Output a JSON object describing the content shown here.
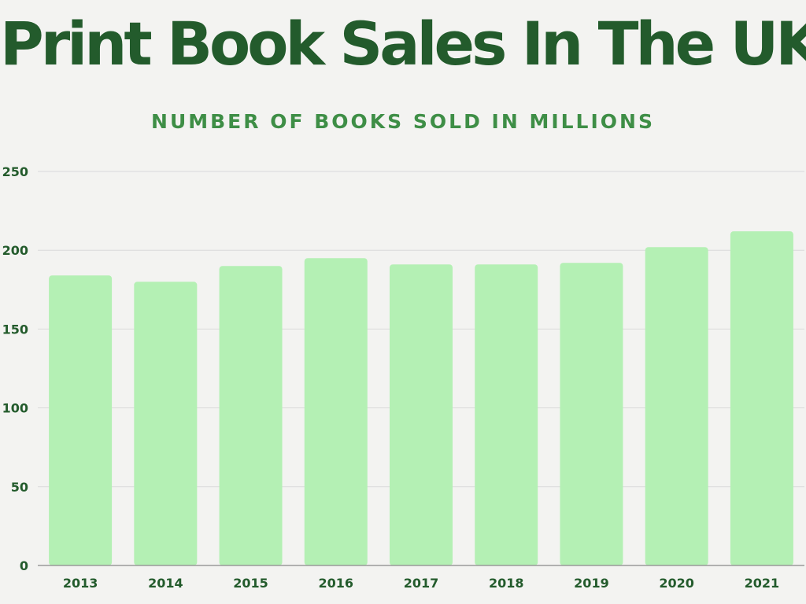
{
  "colors": {
    "title": "#235b2c",
    "subtitle": "#3e8e46",
    "bar": "#b4f0b4",
    "tick_text": "#235b2c",
    "grid": "#dadada",
    "axis": "#9a9a9a"
  },
  "chart_data": {
    "type": "bar",
    "title": "Print Book Sales In The UK",
    "subtitle": "NUMBER OF BOOKS SOLD IN MILLIONS",
    "xlabel": "",
    "ylabel": "",
    "categories": [
      "2013",
      "2014",
      "2015",
      "2016",
      "2017",
      "2018",
      "2019",
      "2020",
      "2021"
    ],
    "values": [
      184,
      180,
      190,
      195,
      191,
      191,
      192,
      202,
      212
    ],
    "ylim": [
      0,
      250
    ],
    "yticks": [
      0,
      50,
      100,
      150,
      200,
      250
    ],
    "grid": true,
    "legend": "none"
  }
}
